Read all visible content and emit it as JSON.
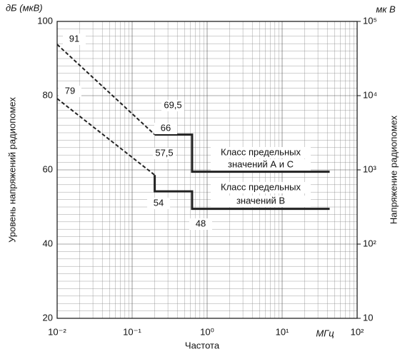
{
  "chart_data": {
    "type": "line",
    "y_unit_label": "дБ (мкВ)",
    "y_label": "Уровень напряжений радиопомех",
    "y2_unit_label": "мк В",
    "y2_label": "Напряжение радиопомех",
    "x_label": "Частота",
    "x_unit_label": "МГц",
    "xscale": "log",
    "xlim": [
      0.01,
      100
    ],
    "xticks": [
      {
        "value": 0.01,
        "label": "10⁻²"
      },
      {
        "value": 0.1,
        "label": "10⁻¹"
      },
      {
        "value": 1,
        "label": "10⁰"
      },
      {
        "value": 10,
        "label": "10¹"
      },
      {
        "value": 100,
        "label": "10²"
      }
    ],
    "xminorticks": [
      0.02,
      0.03,
      0.04,
      0.05,
      0.06,
      0.07,
      0.08,
      0.09,
      0.2,
      0.3,
      0.4,
      0.5,
      0.6,
      0.7,
      0.8,
      0.9,
      2,
      3,
      4,
      5,
      6,
      7,
      8,
      9,
      20,
      30,
      40,
      50,
      60,
      70,
      80,
      90
    ],
    "ylim": [
      20,
      100
    ],
    "yticks": [
      20,
      40,
      60,
      80,
      100
    ],
    "yminorticks": [
      22,
      24,
      26,
      28,
      30,
      32,
      34,
      36,
      38,
      42,
      44,
      46,
      48,
      50,
      52,
      54,
      56,
      58,
      62,
      64,
      66,
      68,
      70,
      72,
      74,
      76,
      78,
      82,
      84,
      86,
      88,
      90,
      92,
      94,
      96,
      98
    ],
    "y2scale": "log",
    "y2lim": [
      10,
      100000
    ],
    "y2ticks": [
      10,
      {
        "value": 100,
        "label": "10²"
      },
      {
        "value": 1000,
        "label": "10³"
      },
      {
        "value": 10000,
        "label": "10⁴"
      },
      {
        "value": 100000,
        "label": "10⁵"
      }
    ],
    "grid": true,
    "color": "#222222",
    "series": [
      {
        "style": "dashed",
        "x": [
          0.01,
          0.2
        ],
        "values": [
          93.8,
          69.5
        ]
      },
      {
        "style": "solid",
        "x": [
          0.2,
          0.63,
          0.63,
          43
        ],
        "values": [
          69.5,
          69.5,
          59.5,
          59.5
        ]
      },
      {
        "style": "dashed",
        "x": [
          0.01,
          0.2
        ],
        "values": [
          79.2,
          58.6
        ]
      },
      {
        "style": "solid",
        "x": [
          0.2,
          0.2,
          0.63,
          0.63,
          43
        ],
        "values": [
          58.6,
          54.2,
          54.2,
          49.5,
          49.5
        ]
      }
    ],
    "annotations": [
      "91",
      "79",
      "69,5",
      "66",
      "57,5",
      "54",
      "48",
      "Класс предельных",
      "значений А и С",
      "Класс предельных",
      "значений В"
    ]
  }
}
